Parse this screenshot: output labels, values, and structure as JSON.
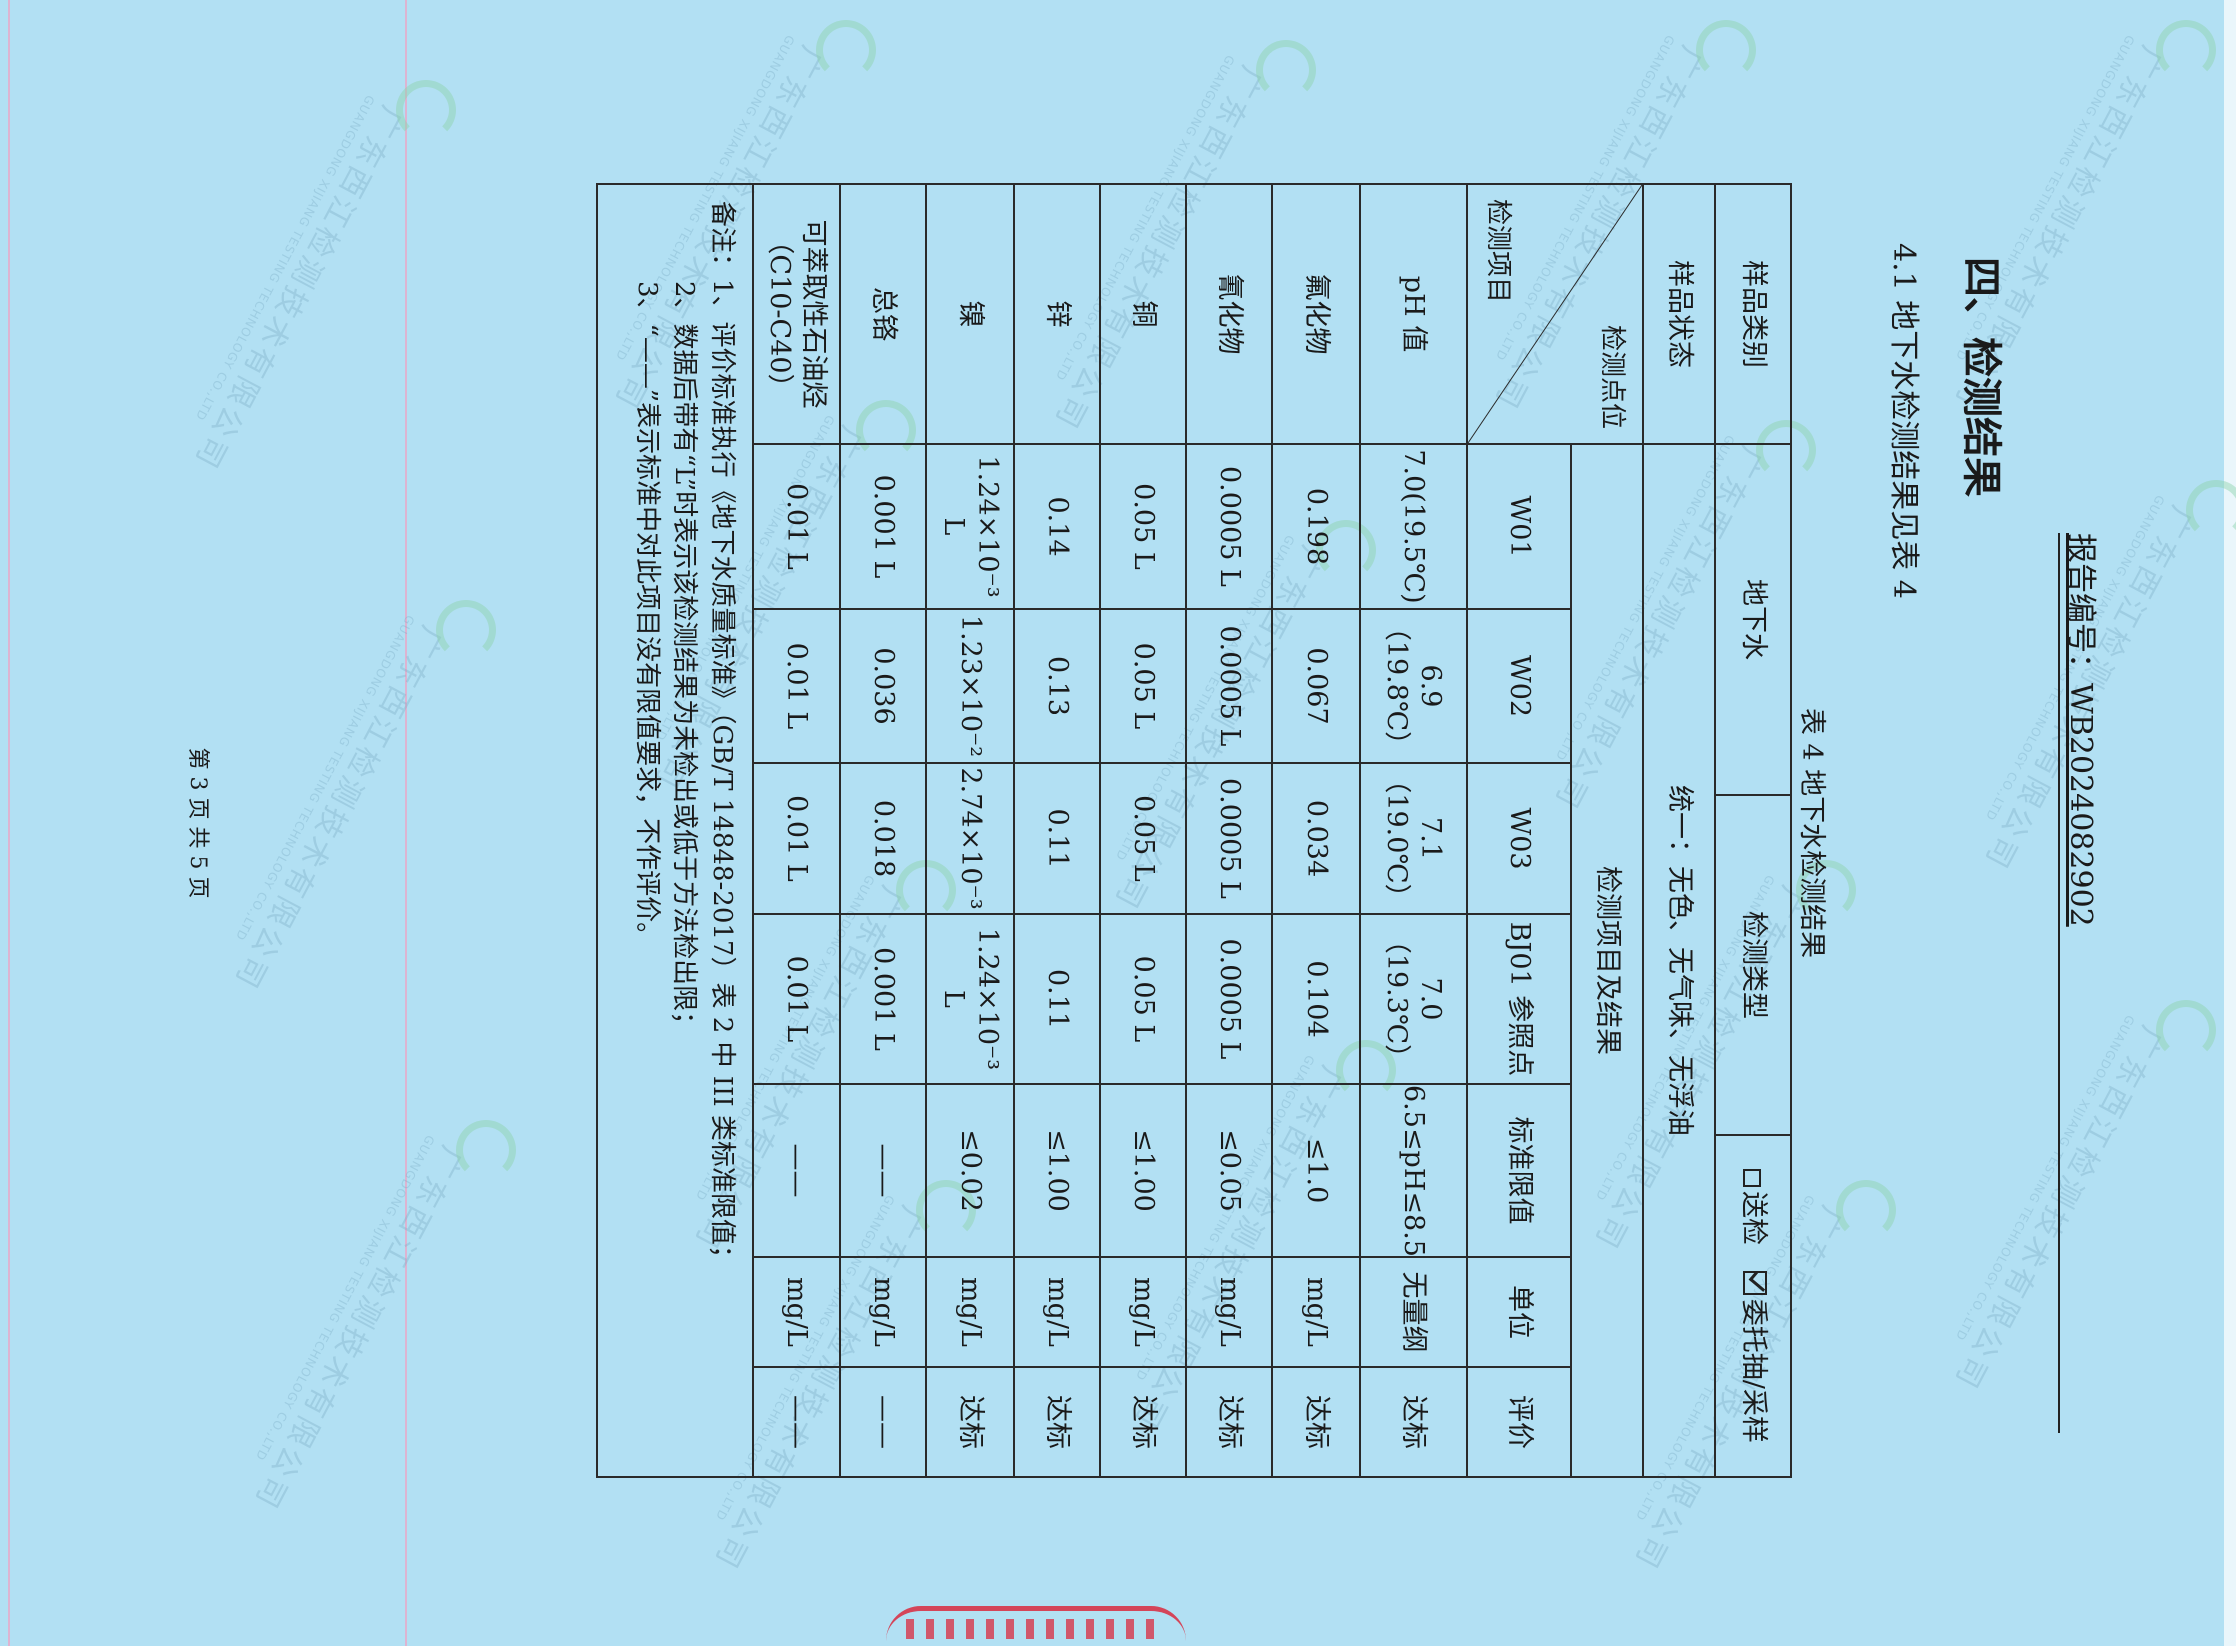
{
  "watermark": {
    "company": "广东西江检测技术有限公司",
    "english": "GUANGDONG XIJIANG TESTING TECHNOLOGY CO.,LTD"
  },
  "header": {
    "report_no_label": "报告编号：",
    "report_no": "WB2024082902"
  },
  "section_title": "四、检测结果",
  "subsection": "4.1 地下水检测结果见表 4",
  "table_caption": "表 4 地下水检测结果",
  "top_rows": {
    "sample_type_label": "样品类别",
    "sample_type": "地下水",
    "test_type_label": "检测类型",
    "option_submit": "送检",
    "option_submit_checked": false,
    "option_entrusted": "委托抽/采样",
    "option_entrusted_checked": true,
    "sample_state_label": "样品状态",
    "sample_state": "统一：无色、无气味、无浮油"
  },
  "table": {
    "group_header": "检测项目及结果",
    "corner_point": "检测点位",
    "corner_item": "检测项目",
    "columns": [
      "W01",
      "W02",
      "W03",
      "BJ01 参照点",
      "标准限值",
      "单位",
      "评价"
    ],
    "rows": [
      {
        "item": "pH 值",
        "values": [
          "7.0(19.5℃)",
          "6.9（19.8℃）",
          "7.1（19.0℃）",
          "7.0（19.3℃）",
          "6.5≤pH≤8.5",
          "无量纲",
          "达标"
        ]
      },
      {
        "item": "氟化物",
        "values": [
          "0.198",
          "0.067",
          "0.034",
          "0.104",
          "≤1.0",
          "mg/L",
          "达标"
        ]
      },
      {
        "item": "氰化物",
        "values": [
          "0.0005 L",
          "0.0005 L",
          "0.0005 L",
          "0.0005 L",
          "≤0.05",
          "mg/L",
          "达标"
        ]
      },
      {
        "item": "铜",
        "values": [
          "0.05 L",
          "0.05 L",
          "0.05 L",
          "0.05 L",
          "≤1.00",
          "mg/L",
          "达标"
        ]
      },
      {
        "item": "锌",
        "values": [
          "0.14",
          "0.13",
          "0.11",
          "0.11",
          "≤1.00",
          "mg/L",
          "达标"
        ]
      },
      {
        "item": "镍",
        "values": [
          "1.24×10⁻³ L",
          "1.23×10⁻²",
          "2.74×10⁻³",
          "1.24×10⁻³ L",
          "≤0.02",
          "mg/L",
          "达标"
        ]
      },
      {
        "item": "总铬",
        "values": [
          "0.001 L",
          "0.036",
          "0.018",
          "0.001 L",
          "——",
          "mg/L",
          "——"
        ]
      },
      {
        "item": "可萃取性石油烃（C10-C40）",
        "values": [
          "0.01 L",
          "0.01 L",
          "0.01 L",
          "0.01 L",
          "——",
          "mg/L",
          "——"
        ]
      }
    ],
    "notes": [
      "备注：1、评价标准执行《地下水质量标准》（GB/T 14848-2017）表 2 中 III 类标准限值；",
      "2、数据后带有“L”时表示该检测结果为未检出或低于方法检出限；",
      "3、“——”表示标准中对此项目没有限值要求，不作评价。"
    ]
  },
  "footer": "第 3 页 共 5 页",
  "colors": {
    "paper": "#b2e0f3",
    "ink": "#1a1a1a",
    "stamp": "#dc1e32",
    "margin_line": "#e7a9c8"
  }
}
